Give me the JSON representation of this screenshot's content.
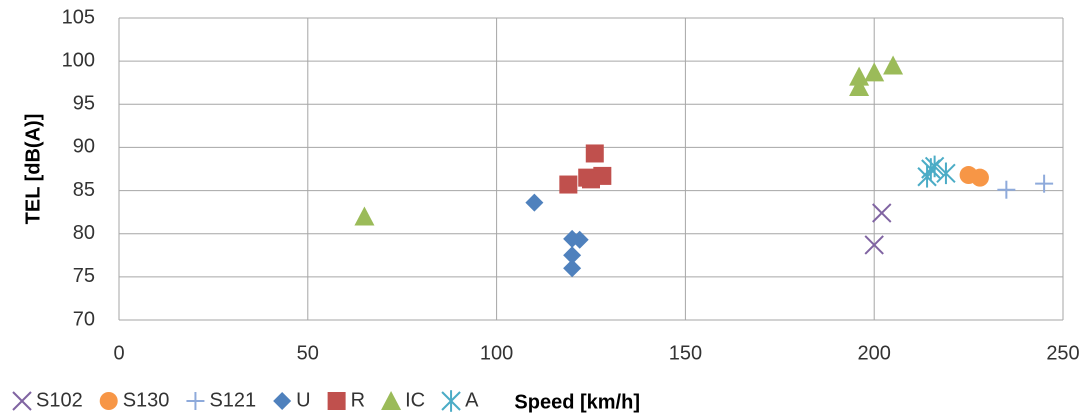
{
  "chart_data": {
    "type": "scatter",
    "x_label": "Speed [km/h]",
    "y_label": "TEL [dB(A)]",
    "xlim": [
      0,
      250
    ],
    "xticks": [
      0,
      50,
      100,
      150,
      200,
      250
    ],
    "ylim": [
      70,
      105
    ],
    "yticks": [
      70,
      75,
      80,
      85,
      90,
      95,
      100,
      105
    ],
    "grid": true,
    "legend": "bottom",
    "series": [
      {
        "name": "S102",
        "color": "#8064a2",
        "marker": "x",
        "x": [
          200,
          202
        ],
        "values": [
          78.7,
          82.4
        ]
      },
      {
        "name": "S130",
        "color": "#f79646",
        "marker": "circle",
        "x": [
          225,
          228
        ],
        "values": [
          86.8,
          86.5
        ]
      },
      {
        "name": "S121",
        "color": "#8eaadb",
        "marker": "plus",
        "x": [
          235,
          245
        ],
        "values": [
          85.1,
          85.8
        ]
      },
      {
        "name": "U",
        "color": "#4f81bd",
        "marker": "diamond",
        "x": [
          110,
          120,
          122,
          120,
          120
        ],
        "values": [
          83.6,
          79.4,
          79.3,
          77.5,
          76
        ]
      },
      {
        "name": "R",
        "color": "#c0504d",
        "marker": "square",
        "x": [
          119,
          124,
          126,
          128,
          125
        ],
        "values": [
          85.7,
          86.5,
          89.3,
          86.7,
          86.3
        ]
      },
      {
        "name": "IC",
        "color": "#9bbb59",
        "marker": "triangle",
        "x": [
          65,
          196,
          196,
          200,
          205
        ],
        "values": [
          82,
          97,
          98.2,
          98.7,
          99.5
        ]
      },
      {
        "name": "A",
        "color": "#4bacc6",
        "marker": "asterisk",
        "x": [
          214,
          216,
          219,
          215
        ],
        "values": [
          86.6,
          87.8,
          87,
          87.5
        ]
      }
    ]
  }
}
